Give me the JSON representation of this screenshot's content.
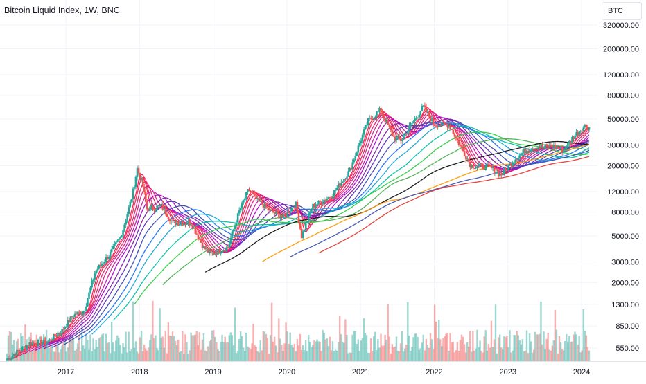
{
  "header": {
    "title": "Bitcoin Liquid Index, 1W, BNC",
    "symbol": "BTC"
  },
  "chart_data": {
    "type": "candlestick",
    "title": "Bitcoin Liquid Index, 1W, BNC",
    "yscale": "log",
    "ylim": [
      380,
      380000
    ],
    "xlim": [
      2016.2,
      2024.12
    ],
    "y_ticks": [
      "320000.00",
      "200000.00",
      "120000.00",
      "80000.00",
      "50000.00",
      "30000.00",
      "20000.00",
      "12000.00",
      "8000.00",
      "5000.00",
      "3000.00",
      "2000.00",
      "1300.00",
      "850.00",
      "550.00"
    ],
    "x_ticks": [
      "2017",
      "2018",
      "2019",
      "2020",
      "2021",
      "2022",
      "2023",
      "2024"
    ],
    "grid": true,
    "price_path": [
      [
        2016.2,
        440
      ],
      [
        2016.5,
        600
      ],
      [
        2016.75,
        620
      ],
      [
        2016.95,
        780
      ],
      [
        2017.1,
        1050
      ],
      [
        2017.25,
        1150
      ],
      [
        2017.4,
        2500
      ],
      [
        2017.6,
        3500
      ],
      [
        2017.75,
        5000
      ],
      [
        2017.9,
        11000
      ],
      [
        2017.97,
        19000
      ],
      [
        2018.05,
        13000
      ],
      [
        2018.1,
        8500
      ],
      [
        2018.3,
        9000
      ],
      [
        2018.45,
        6500
      ],
      [
        2018.7,
        6500
      ],
      [
        2018.87,
        4000
      ],
      [
        2018.97,
        3500
      ],
      [
        2019.2,
        4000
      ],
      [
        2019.35,
        8000
      ],
      [
        2019.48,
        12500
      ],
      [
        2019.6,
        10000
      ],
      [
        2019.8,
        8000
      ],
      [
        2019.95,
        7200
      ],
      [
        2020.12,
        9500
      ],
      [
        2020.2,
        5000
      ],
      [
        2020.35,
        9000
      ],
      [
        2020.6,
        11000
      ],
      [
        2020.85,
        18000
      ],
      [
        2020.97,
        29000
      ],
      [
        2021.1,
        48000
      ],
      [
        2021.27,
        60000
      ],
      [
        2021.45,
        35000
      ],
      [
        2021.55,
        33000
      ],
      [
        2021.72,
        48000
      ],
      [
        2021.85,
        64000
      ],
      [
        2022.0,
        45000
      ],
      [
        2022.2,
        45000
      ],
      [
        2022.35,
        30000
      ],
      [
        2022.5,
        20000
      ],
      [
        2022.75,
        19500
      ],
      [
        2022.9,
        16500
      ],
      [
        2023.1,
        23000
      ],
      [
        2023.3,
        28500
      ],
      [
        2023.6,
        29500
      ],
      [
        2023.75,
        27000
      ],
      [
        2023.9,
        36000
      ],
      [
        2024.05,
        44000
      ],
      [
        2024.12,
        42000
      ]
    ],
    "annotations": [
      "Volume histogram at bottom",
      "Multiple moving-average ribbon lines (red to magenta, blue, green, black, orange)"
    ],
    "colors": {
      "up": "#26a69a",
      "down": "#ef5350",
      "grid": "#f0f3fa",
      "axis_text": "#131722"
    }
  }
}
